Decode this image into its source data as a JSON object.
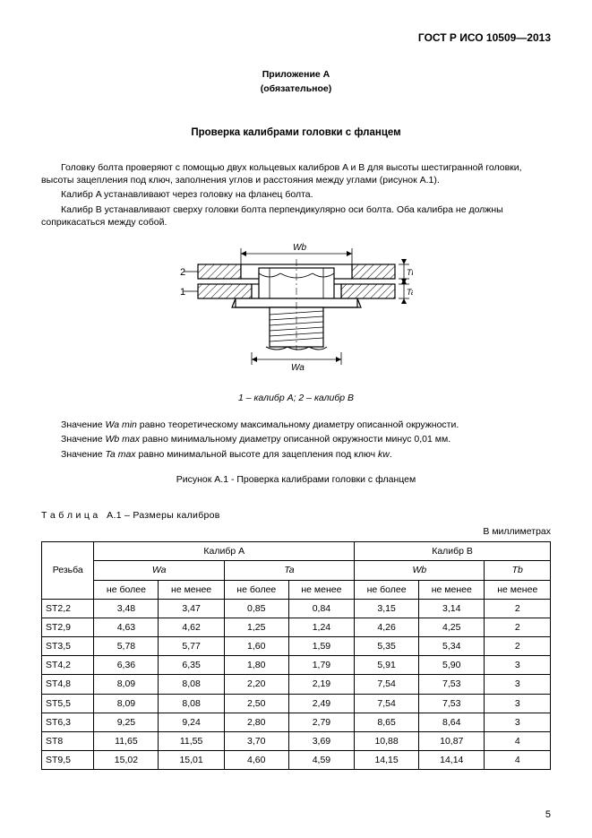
{
  "doc_id": "ГОСТ Р ИСО 10509—2013",
  "appendix": "Приложение А",
  "appendix_sub": "(обязательное)",
  "title": "Проверка калибрами головки с фланцем",
  "para1": "Головку болта проверяют с помощью двух кольцевых калибров A и B для высоты шестигранной головки, высоты зацепления под ключ, заполнения углов и расстояния между углами (рисунок A.1).",
  "para2": "Калибр A устанавливают через головку на фланец болта.",
  "para3": "Калибр B устанавливают сверху головки болта перпендикулярно оси болта. Оба калибра не должны соприкасаться между собой.",
  "fig_labels": {
    "wb": "Wb",
    "wa": "Wa",
    "tb": "Tb",
    "ta": "Ta",
    "one": "1",
    "two": "2"
  },
  "figcap_1": "1",
  "figcap_1_txt": " – калибр A; ",
  "figcap_2": "2",
  "figcap_2_txt": " – калибр B",
  "desc1_a": "Значение ",
  "desc1_b": "Wa min",
  "desc1_c": " равно теоретическому максимальному диаметру описанной окружности.",
  "desc2_a": "Значение ",
  "desc2_b": "Wb max",
  "desc2_c": " равно минимальному диаметру описанной окружности минус 0,01 мм.",
  "desc3_a": "Значение ",
  "desc3_b": "Ta max",
  "desc3_c": " равно минимальной высоте для зацепления под ключ ",
  "desc3_d": "kw",
  "desc3_e": ".",
  "fig_title": "Рисунок A.1 - Проверка калибрами головки с фланцем",
  "tbl_title": "Т а б л и ц а   А.1 – Размеры калибров",
  "unit": "В миллиметрах",
  "headers": {
    "thread": "Резьба",
    "calA": "Калибр A",
    "calB": "Калибр B",
    "wa": "Wa",
    "ta": "Ta",
    "wb": "Wb",
    "tb": "Tb",
    "nomore": "не более",
    "noless": "не менее"
  },
  "rows": [
    [
      "ST2,2",
      "3,48",
      "3,47",
      "0,85",
      "0,84",
      "3,15",
      "3,14",
      "2"
    ],
    [
      "ST2,9",
      "4,63",
      "4,62",
      "1,25",
      "1,24",
      "4,26",
      "4,25",
      "2"
    ],
    [
      "ST3,5",
      "5,78",
      "5,77",
      "1,60",
      "1,59",
      "5,35",
      "5,34",
      "2"
    ],
    [
      "ST4,2",
      "6,36",
      "6,35",
      "1,80",
      "1,79",
      "5,91",
      "5,90",
      "3"
    ],
    [
      "ST4,8",
      "8,09",
      "8,08",
      "2,20",
      "2,19",
      "7,54",
      "7,53",
      "3"
    ],
    [
      "ST5,5",
      "8,09",
      "8,08",
      "2,50",
      "2,49",
      "7,54",
      "7,53",
      "3"
    ],
    [
      "ST6,3",
      "9,25",
      "9,24",
      "2,80",
      "2,79",
      "8,65",
      "8,64",
      "3"
    ],
    [
      "ST8",
      "11,65",
      "11,55",
      "3,70",
      "3,69",
      "10,88",
      "10,87",
      "4"
    ],
    [
      "ST9,5",
      "15,02",
      "15,01",
      "4,60",
      "4,59",
      "14,15",
      "14,14",
      "4"
    ]
  ],
  "page_num": "5"
}
